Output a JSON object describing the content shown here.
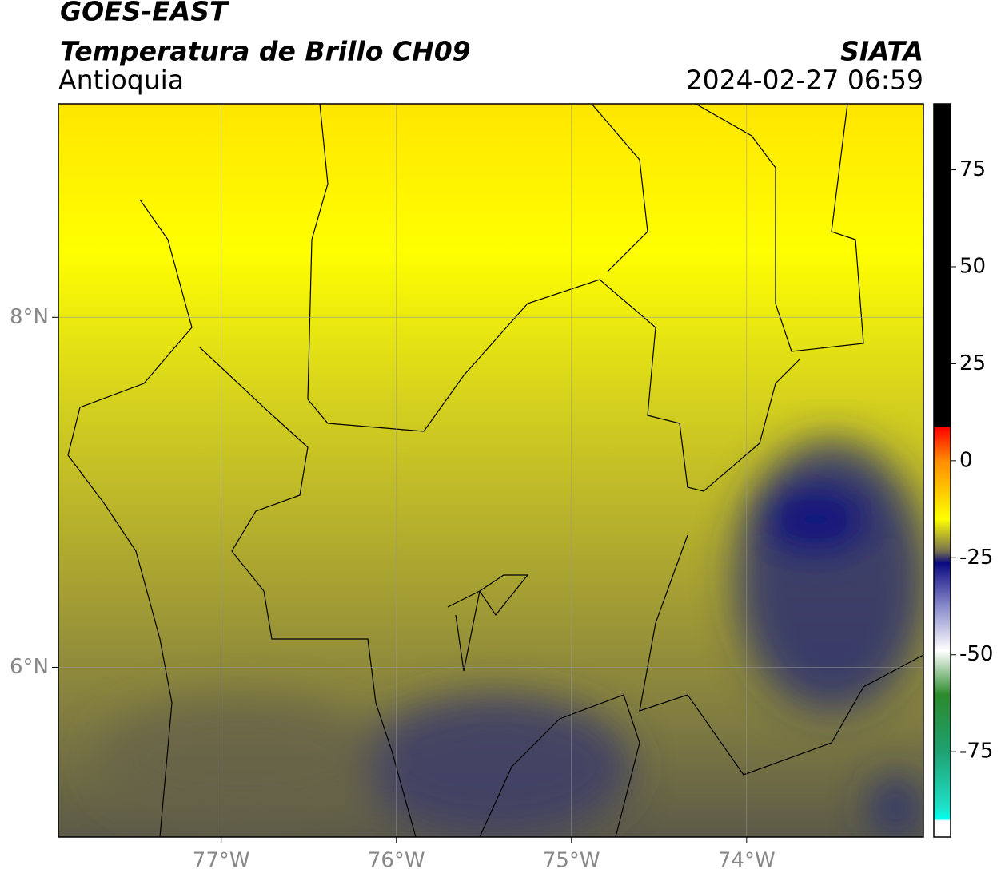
{
  "header": {
    "title": "GOES-EAST",
    "subtitle": "Temperatura de Brillo CH09",
    "region": "Antioquia",
    "agency": "SIATA",
    "timestamp": "2024-02-27 06:59"
  },
  "map": {
    "lon_range": [
      -77.93,
      -72.99
    ],
    "lat_range": [
      5.03,
      9.22
    ],
    "lon_ticks": [
      {
        "value": -77,
        "label": "77°W"
      },
      {
        "value": -76,
        "label": "76°W"
      },
      {
        "value": -75,
        "label": "75°W"
      },
      {
        "value": -74,
        "label": "74°W"
      }
    ],
    "lat_ticks": [
      {
        "value": 8,
        "label": "8°N"
      },
      {
        "value": 6,
        "label": "6°N"
      }
    ],
    "grid": true
  },
  "colorbar": {
    "range": [
      -97,
      92
    ],
    "ticks": [
      75,
      50,
      25,
      0,
      -25,
      -50,
      -75
    ]
  }
}
